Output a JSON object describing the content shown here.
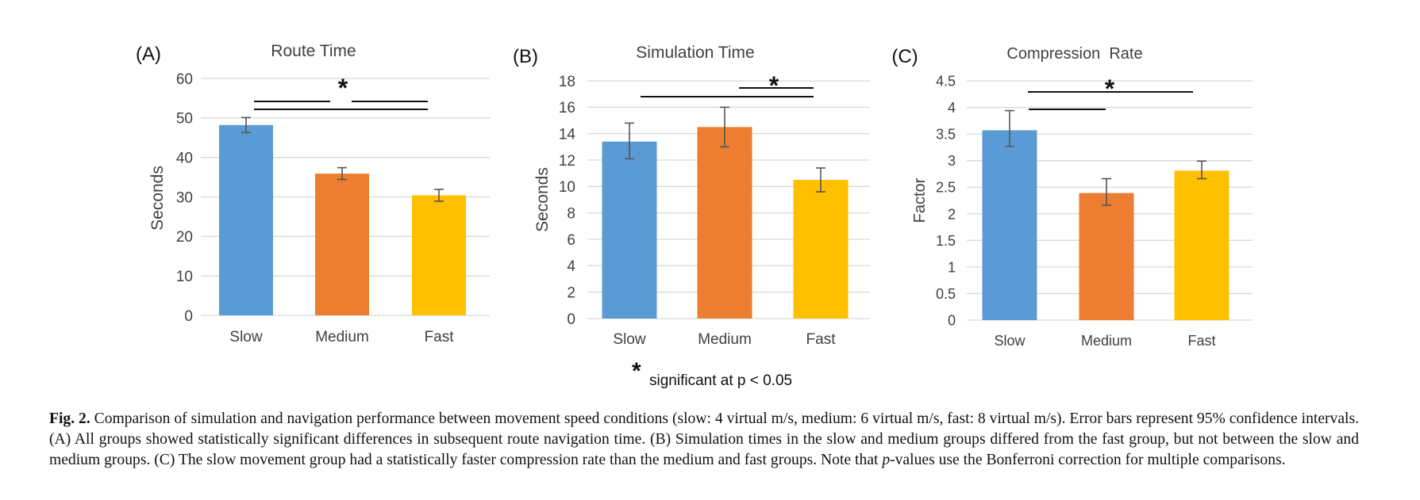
{
  "colors": {
    "slow": "#5B9BD5",
    "medium": "#ED7D31",
    "fast": "#FFC000",
    "grid": "#d9d9d9",
    "text": "#404040"
  },
  "chart_data": [
    {
      "panel": "(A)",
      "type": "bar",
      "title": "Route Time",
      "ylabel": "Seconds",
      "xlabel": "",
      "categories": [
        "Slow",
        "Medium",
        "Fast"
      ],
      "values": [
        48.2,
        35.9,
        30.4
      ],
      "error_bars": [
        [
          46.3,
          50.1
        ],
        [
          34.4,
          37.4
        ],
        [
          28.9,
          31.9
        ]
      ],
      "ylim": [
        0,
        60
      ],
      "yticks": [
        0,
        10,
        20,
        30,
        40,
        50,
        60
      ],
      "ytick_labels": [
        "0",
        "10",
        "20",
        "30",
        "40",
        "50",
        "60"
      ],
      "grid": true,
      "significance_marker": "*",
      "significance_pairs": [
        [
          0,
          1
        ],
        [
          1,
          2
        ],
        [
          0,
          2
        ]
      ]
    },
    {
      "panel": "(B)",
      "type": "bar",
      "title": "Simulation Time",
      "ylabel": "Seconds",
      "xlabel": "",
      "categories": [
        "Slow",
        "Medium",
        "Fast"
      ],
      "values": [
        13.4,
        14.5,
        10.5
      ],
      "error_bars": [
        [
          12.1,
          14.8
        ],
        [
          13.0,
          16.0
        ],
        [
          9.6,
          11.4
        ]
      ],
      "ylim": [
        0,
        18
      ],
      "yticks": [
        0,
        2,
        4,
        6,
        8,
        10,
        12,
        14,
        16,
        18
      ],
      "ytick_labels": [
        "0",
        "2",
        "4",
        "6",
        "8",
        "10",
        "12",
        "14",
        "16",
        "18"
      ],
      "grid": true,
      "significance_marker": "*",
      "significance_pairs": [
        [
          0,
          2
        ],
        [
          1,
          2
        ]
      ]
    },
    {
      "panel": "(C)",
      "type": "bar",
      "title": "Compression  Rate",
      "ylabel": "Factor",
      "xlabel": "",
      "categories": [
        "Slow",
        "Medium",
        "Fast"
      ],
      "values": [
        3.57,
        2.39,
        2.81
      ],
      "error_bars": [
        [
          3.27,
          3.94
        ],
        [
          2.16,
          2.66
        ],
        [
          2.66,
          2.99
        ]
      ],
      "ylim": [
        0,
        4.5
      ],
      "yticks": [
        0,
        0.5,
        1,
        1.5,
        2,
        2.5,
        3,
        3.5,
        4,
        4.5
      ],
      "ytick_labels": [
        "0",
        "0.5",
        "1",
        "1.5",
        "2",
        "2.5",
        "3",
        "3.5",
        "4",
        "4.5"
      ],
      "grid": true,
      "significance_marker": "*",
      "significance_pairs": [
        [
          0,
          1
        ],
        [
          0,
          2
        ]
      ]
    }
  ],
  "note": {
    "marker": "*",
    "text": "significant at p < 0.05"
  },
  "caption": {
    "label": "Fig. 2.",
    "part1": " Comparison of simulation and navigation performance between movement speed conditions (slow: 4 virtual m/s, medium: 6 virtual m/s, fast: 8 virtual m/s). Error bars represent 95% confidence intervals. (A) All groups showed statistically significant differences in subsequent route navigation time. (B) Simulation times in the slow and medium groups differed from the fast group, but not between the slow and medium groups. (C) The slow movement group had a statistically faster compression rate than the medium and fast groups. Note that ",
    "italic": "p",
    "part2": "-values use the Bonferroni correction for multiple comparisons."
  }
}
